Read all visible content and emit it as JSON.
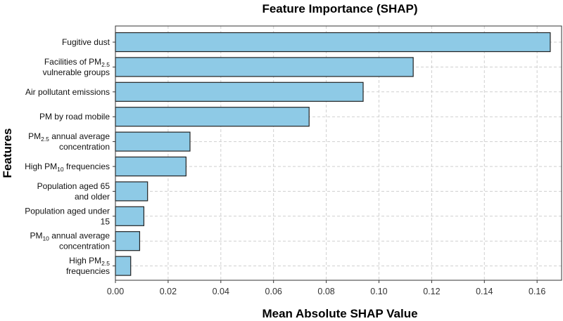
{
  "chart_data": {
    "type": "bar",
    "orientation": "horizontal",
    "title": "Feature Importance (SHAP)",
    "xlabel": "Mean Absolute SHAP Value",
    "ylabel": "Features",
    "xlim": [
      0,
      0.17
    ],
    "xticks": [
      "0.00",
      "0.02",
      "0.04",
      "0.06",
      "0.08",
      "0.10",
      "0.12",
      "0.14",
      "0.16"
    ],
    "grid": true,
    "bar_color": "#8ecae6",
    "categories": [
      "Fugitive dust",
      "Facilities of PM2.5 vulnerable groups",
      "Air pollutant emissions",
      "PM by road mobile",
      "PM2.5 annual average concentration",
      "High PM10 frequencies",
      "Population aged 65 and older",
      "Population aged under 15",
      "PM10 annual average concentration",
      "High PM2.5 frequencies"
    ],
    "values": [
      0.165,
      0.113,
      0.094,
      0.0735,
      0.0283,
      0.0268,
      0.0122,
      0.0108,
      0.0092,
      0.0058
    ]
  }
}
